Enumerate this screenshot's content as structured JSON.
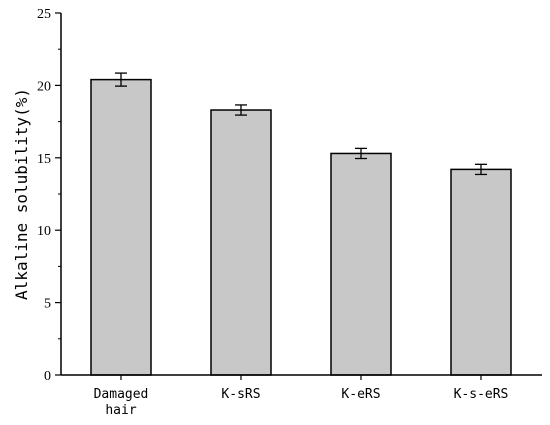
{
  "chart_data": {
    "type": "bar",
    "categories": [
      "Damaged hair",
      "K-sRS",
      "K-eRS",
      "K-s-eRS"
    ],
    "category_label_lines": [
      [
        "Damaged",
        "hair"
      ],
      [
        "K-sRS"
      ],
      [
        "K-eRS"
      ],
      [
        "K-s-eRS"
      ]
    ],
    "values": [
      20.4,
      18.3,
      15.3,
      14.2
    ],
    "errors": [
      0.45,
      0.35,
      0.35,
      0.35
    ],
    "ylabel": "Alkaline solubility(%)",
    "xlabel": "",
    "ylim": [
      0,
      25
    ],
    "yticks": [
      "0",
      "5",
      "10",
      "15",
      "20",
      "25"
    ],
    "grid": false,
    "bar_color": "#c8c8c8",
    "edge_color": "#000000"
  }
}
